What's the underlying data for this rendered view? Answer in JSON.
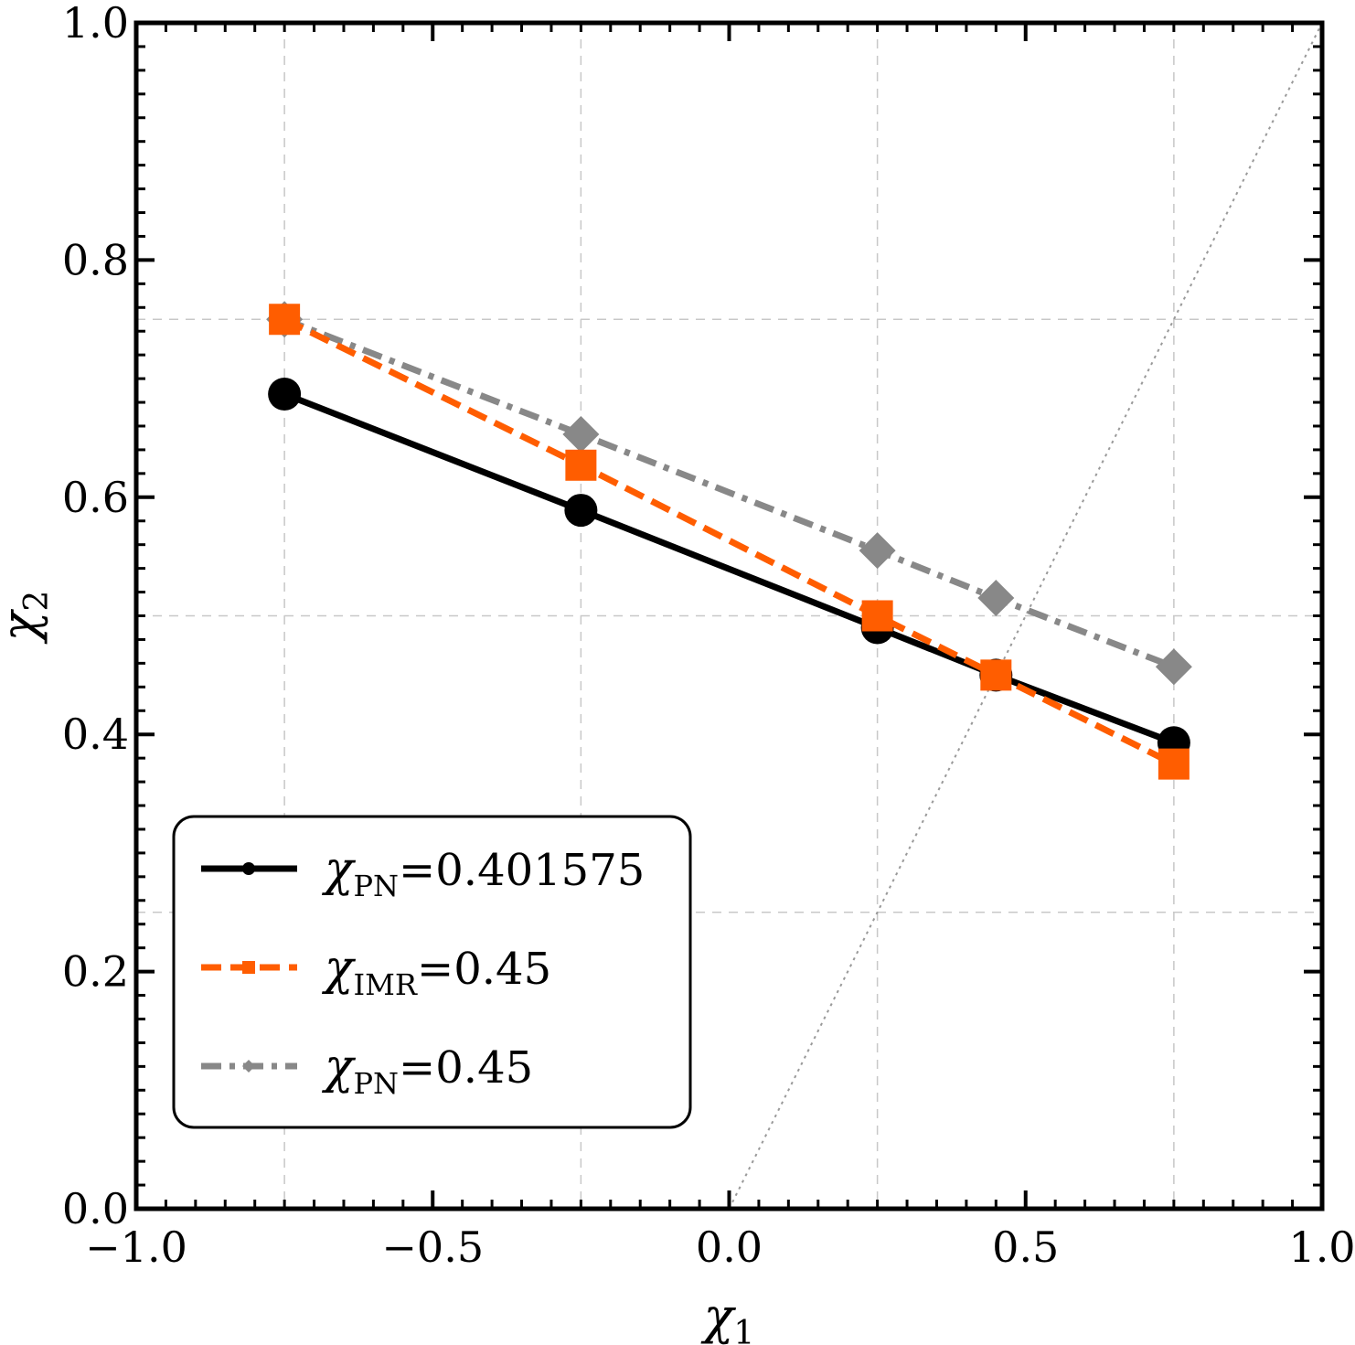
{
  "chart_data": {
    "type": "line",
    "title": "",
    "xlabel": {
      "symbol": "χ",
      "sub": "1"
    },
    "ylabel": {
      "symbol": "χ",
      "sub": "2"
    },
    "xlim": [
      -1.0,
      1.0
    ],
    "ylim": [
      0.0,
      1.0
    ],
    "xticks": [
      -1.0,
      -0.5,
      0.0,
      0.5,
      1.0
    ],
    "yticks": [
      0.0,
      0.2,
      0.4,
      0.6,
      0.8,
      1.0
    ],
    "xtick_labels": [
      "−1.0",
      "−0.5",
      "0.0",
      "0.5",
      "1.0"
    ],
    "ytick_labels": [
      "0.0",
      "0.2",
      "0.4",
      "0.6",
      "0.8",
      "1.0"
    ],
    "grid_x": [
      -0.75,
      -0.25,
      0.25,
      0.75
    ],
    "grid_y": [
      0.25,
      0.5,
      0.75
    ],
    "reference_line": {
      "label": "χ2 = χ1",
      "x": [
        0.0,
        1.0
      ],
      "y": [
        0.0,
        1.0
      ],
      "style": "dotted",
      "color": "#999999"
    },
    "series": [
      {
        "name": "χPN=0.401575",
        "legend_symbol": "χ",
        "legend_sub": "PN",
        "legend_value": "=0.401575",
        "color": "#000000",
        "line_style": "solid",
        "marker": "circle",
        "x": [
          -0.75,
          -0.25,
          0.25,
          0.45,
          0.75
        ],
        "y": [
          0.687,
          0.589,
          0.49,
          0.45,
          0.393
        ]
      },
      {
        "name": "χIMR=0.45",
        "legend_symbol": "χ",
        "legend_sub": "IMR",
        "legend_value": "=0.45",
        "color": "#ff5d00",
        "line_style": "dashed",
        "marker": "square",
        "x": [
          -0.75,
          -0.25,
          0.25,
          0.45,
          0.75
        ],
        "y": [
          0.75,
          0.627,
          0.5,
          0.45,
          0.375
        ]
      },
      {
        "name": "χPN=0.45",
        "legend_symbol": "χ",
        "legend_sub": "PN",
        "legend_value": "=0.45",
        "color": "#888888",
        "line_style": "dashdot",
        "marker": "diamond",
        "x": [
          -0.75,
          -0.25,
          0.25,
          0.45,
          0.75
        ],
        "y": [
          0.75,
          0.653,
          0.555,
          0.515,
          0.457
        ]
      }
    ],
    "legend_position": "bottom-left"
  }
}
